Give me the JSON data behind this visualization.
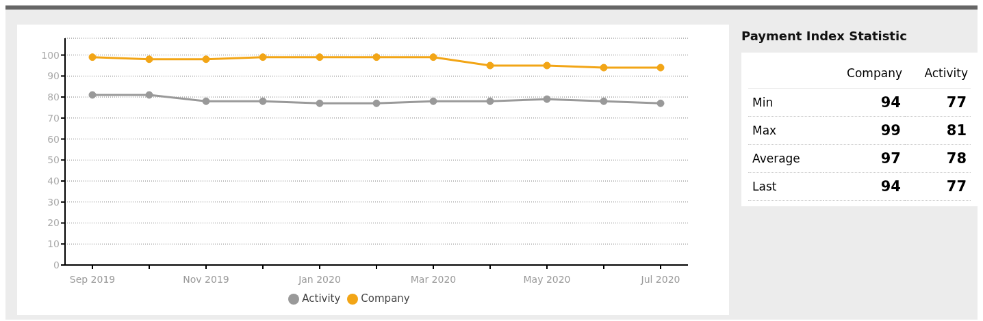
{
  "chart_data": [
    {
      "type": "line",
      "categories": [
        "Sep 2019",
        null,
        "Nov 2019",
        null,
        "Jan 2020",
        null,
        "Mar 2020",
        null,
        "May 2020",
        null,
        "Jul 2020"
      ],
      "series": [
        {
          "name": "Activity",
          "color": "#999999",
          "values": [
            81,
            81,
            78,
            78,
            77,
            77,
            78,
            78,
            79,
            78,
            77
          ]
        },
        {
          "name": "Company",
          "color": "#f2a516",
          "values": [
            99,
            98,
            98,
            99,
            99,
            99,
            99,
            95,
            95,
            94,
            94
          ]
        }
      ],
      "ylim": [
        0,
        108
      ],
      "yticks": [
        0,
        10,
        20,
        30,
        40,
        50,
        60,
        70,
        80,
        90,
        100
      ],
      "grid": "y",
      "legend": "bottom",
      "marker": "circle",
      "line_style": "solid"
    },
    {
      "type": "other",
      "title": "Payment Index Statistic",
      "categories": [
        "Min",
        "Max",
        "Average",
        "Last"
      ],
      "series": [
        {
          "name": "Company",
          "values": [
            94,
            99,
            97,
            94
          ]
        },
        {
          "name": "Activity",
          "values": [
            77,
            81,
            78,
            77
          ]
        }
      ],
      "data_labels": true
    }
  ]
}
